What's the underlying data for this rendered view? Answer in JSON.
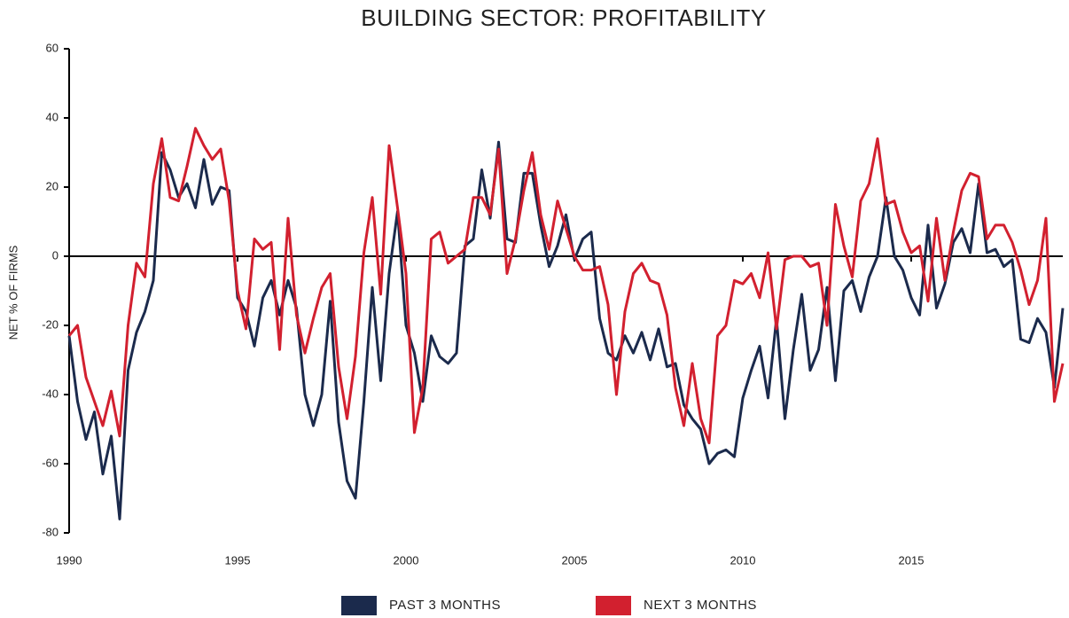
{
  "chart_data": {
    "type": "line",
    "title": "BUILDING SECTOR: PROFITABILITY",
    "y_label": "NET % OF FIRMS",
    "x": [
      1990,
      1990.25,
      1990.5,
      1990.75,
      1991,
      1991.25,
      1991.5,
      1991.75,
      1992,
      1992.25,
      1992.5,
      1992.75,
      1993,
      1993.25,
      1993.5,
      1993.75,
      1994,
      1994.25,
      1994.5,
      1994.75,
      1995,
      1995.25,
      1995.5,
      1995.75,
      1996,
      1996.25,
      1996.5,
      1996.75,
      1997,
      1997.25,
      1997.5,
      1997.75,
      1998,
      1998.25,
      1998.5,
      1998.75,
      1999,
      1999.25,
      1999.5,
      1999.75,
      2000,
      2000.25,
      2000.5,
      2000.75,
      2001,
      2001.25,
      2001.5,
      2001.75,
      2002,
      2002.25,
      2002.5,
      2002.75,
      2003,
      2003.25,
      2003.5,
      2003.75,
      2004,
      2004.25,
      2004.5,
      2004.75,
      2005,
      2005.25,
      2005.5,
      2005.75,
      2006,
      2006.25,
      2006.5,
      2006.75,
      2007,
      2007.25,
      2007.5,
      2007.75,
      2008,
      2008.25,
      2008.5,
      2008.75,
      2009,
      2009.25,
      2009.5,
      2009.75,
      2010,
      2010.25,
      2010.5,
      2010.75,
      2011,
      2011.25,
      2011.5,
      2011.75,
      2012,
      2012.25,
      2012.5,
      2012.75,
      2013,
      2013.25,
      2013.5,
      2013.75,
      2014,
      2014.25,
      2014.5,
      2014.75,
      2015,
      2015.25,
      2015.5,
      2015.75,
      2016,
      2016.25,
      2016.5,
      2016.75,
      2017,
      2017.25,
      2017.5,
      2017.75,
      2018,
      2018.25,
      2018.5,
      2018.75,
      2019,
      2019.25,
      2019.5
    ],
    "series": [
      {
        "name": "PAST 3 MONTHS",
        "color": "#1b2a4c",
        "values": [
          -23,
          -42,
          -53,
          -45,
          -63,
          -52,
          -76,
          -33,
          -22,
          -16,
          -7,
          30,
          25,
          17,
          21,
          14,
          28,
          15,
          20,
          19,
          -12,
          -16,
          -26,
          -12,
          -7,
          -17,
          -7,
          -15,
          -40,
          -49,
          -40,
          -13,
          -48,
          -65,
          -70,
          -42,
          -9,
          -36,
          -5,
          13,
          -20,
          -28,
          -42,
          -23,
          -29,
          -31,
          -28,
          3,
          5,
          25,
          11,
          33,
          5,
          4,
          24,
          24,
          9,
          -3,
          3,
          12,
          -1,
          5,
          7,
          -18,
          -28,
          -30,
          -23,
          -28,
          -22,
          -30,
          -21,
          -32,
          -31,
          -43,
          -47,
          -50,
          -60,
          -57,
          -56,
          -58,
          -41,
          -33,
          -26,
          -41,
          -18,
          -47,
          -27,
          -11,
          -33,
          -27,
          -9,
          -36,
          -10,
          -7,
          -16,
          -6,
          0,
          17,
          0,
          -4,
          -12,
          -17,
          9,
          -15,
          -8,
          4,
          8,
          1,
          21,
          1,
          2,
          -3,
          -1,
          -24,
          -25,
          -18,
          -22,
          -38,
          -15
        ]
      },
      {
        "name": "NEXT 3 MONTHS",
        "color": "#d2202f",
        "values": [
          -23,
          -20,
          -35,
          -42,
          -49,
          -39,
          -52,
          -20,
          -2,
          -6,
          21,
          34,
          17,
          16,
          26,
          37,
          32,
          28,
          31,
          16,
          -10,
          -21,
          5,
          2,
          4,
          -27,
          11,
          -17,
          -28,
          -18,
          -9,
          -5,
          -32,
          -47,
          -29,
          1,
          17,
          -11,
          32,
          14,
          -5,
          -51,
          -38,
          5,
          7,
          -2,
          0,
          2,
          17,
          17,
          12,
          31,
          -5,
          5,
          19,
          30,
          12,
          2,
          16,
          8,
          0,
          -4,
          -4,
          -3,
          -14,
          -40,
          -16,
          -5,
          -2,
          -7,
          -8,
          -17,
          -38,
          -49,
          -31,
          -47,
          -54,
          -23,
          -20,
          -7,
          -8,
          -5,
          -12,
          1,
          -21,
          -1,
          0,
          0,
          -3,
          -2,
          -20,
          15,
          3,
          -6,
          16,
          21,
          34,
          15,
          16,
          7,
          1,
          3,
          -13,
          11,
          -7,
          7,
          19,
          24,
          23,
          5,
          9,
          9,
          4,
          -4,
          -14,
          -7,
          11,
          -42,
          -31
        ]
      }
    ],
    "xlim": [
      1990,
      2019.5
    ],
    "xticks": [
      1990,
      1995,
      2000,
      2005,
      2010,
      2015
    ],
    "ylim": [
      -80,
      60
    ],
    "yticks": [
      -80,
      -60,
      -40,
      -20,
      0,
      20,
      40,
      60
    ],
    "legend": "bottom"
  }
}
